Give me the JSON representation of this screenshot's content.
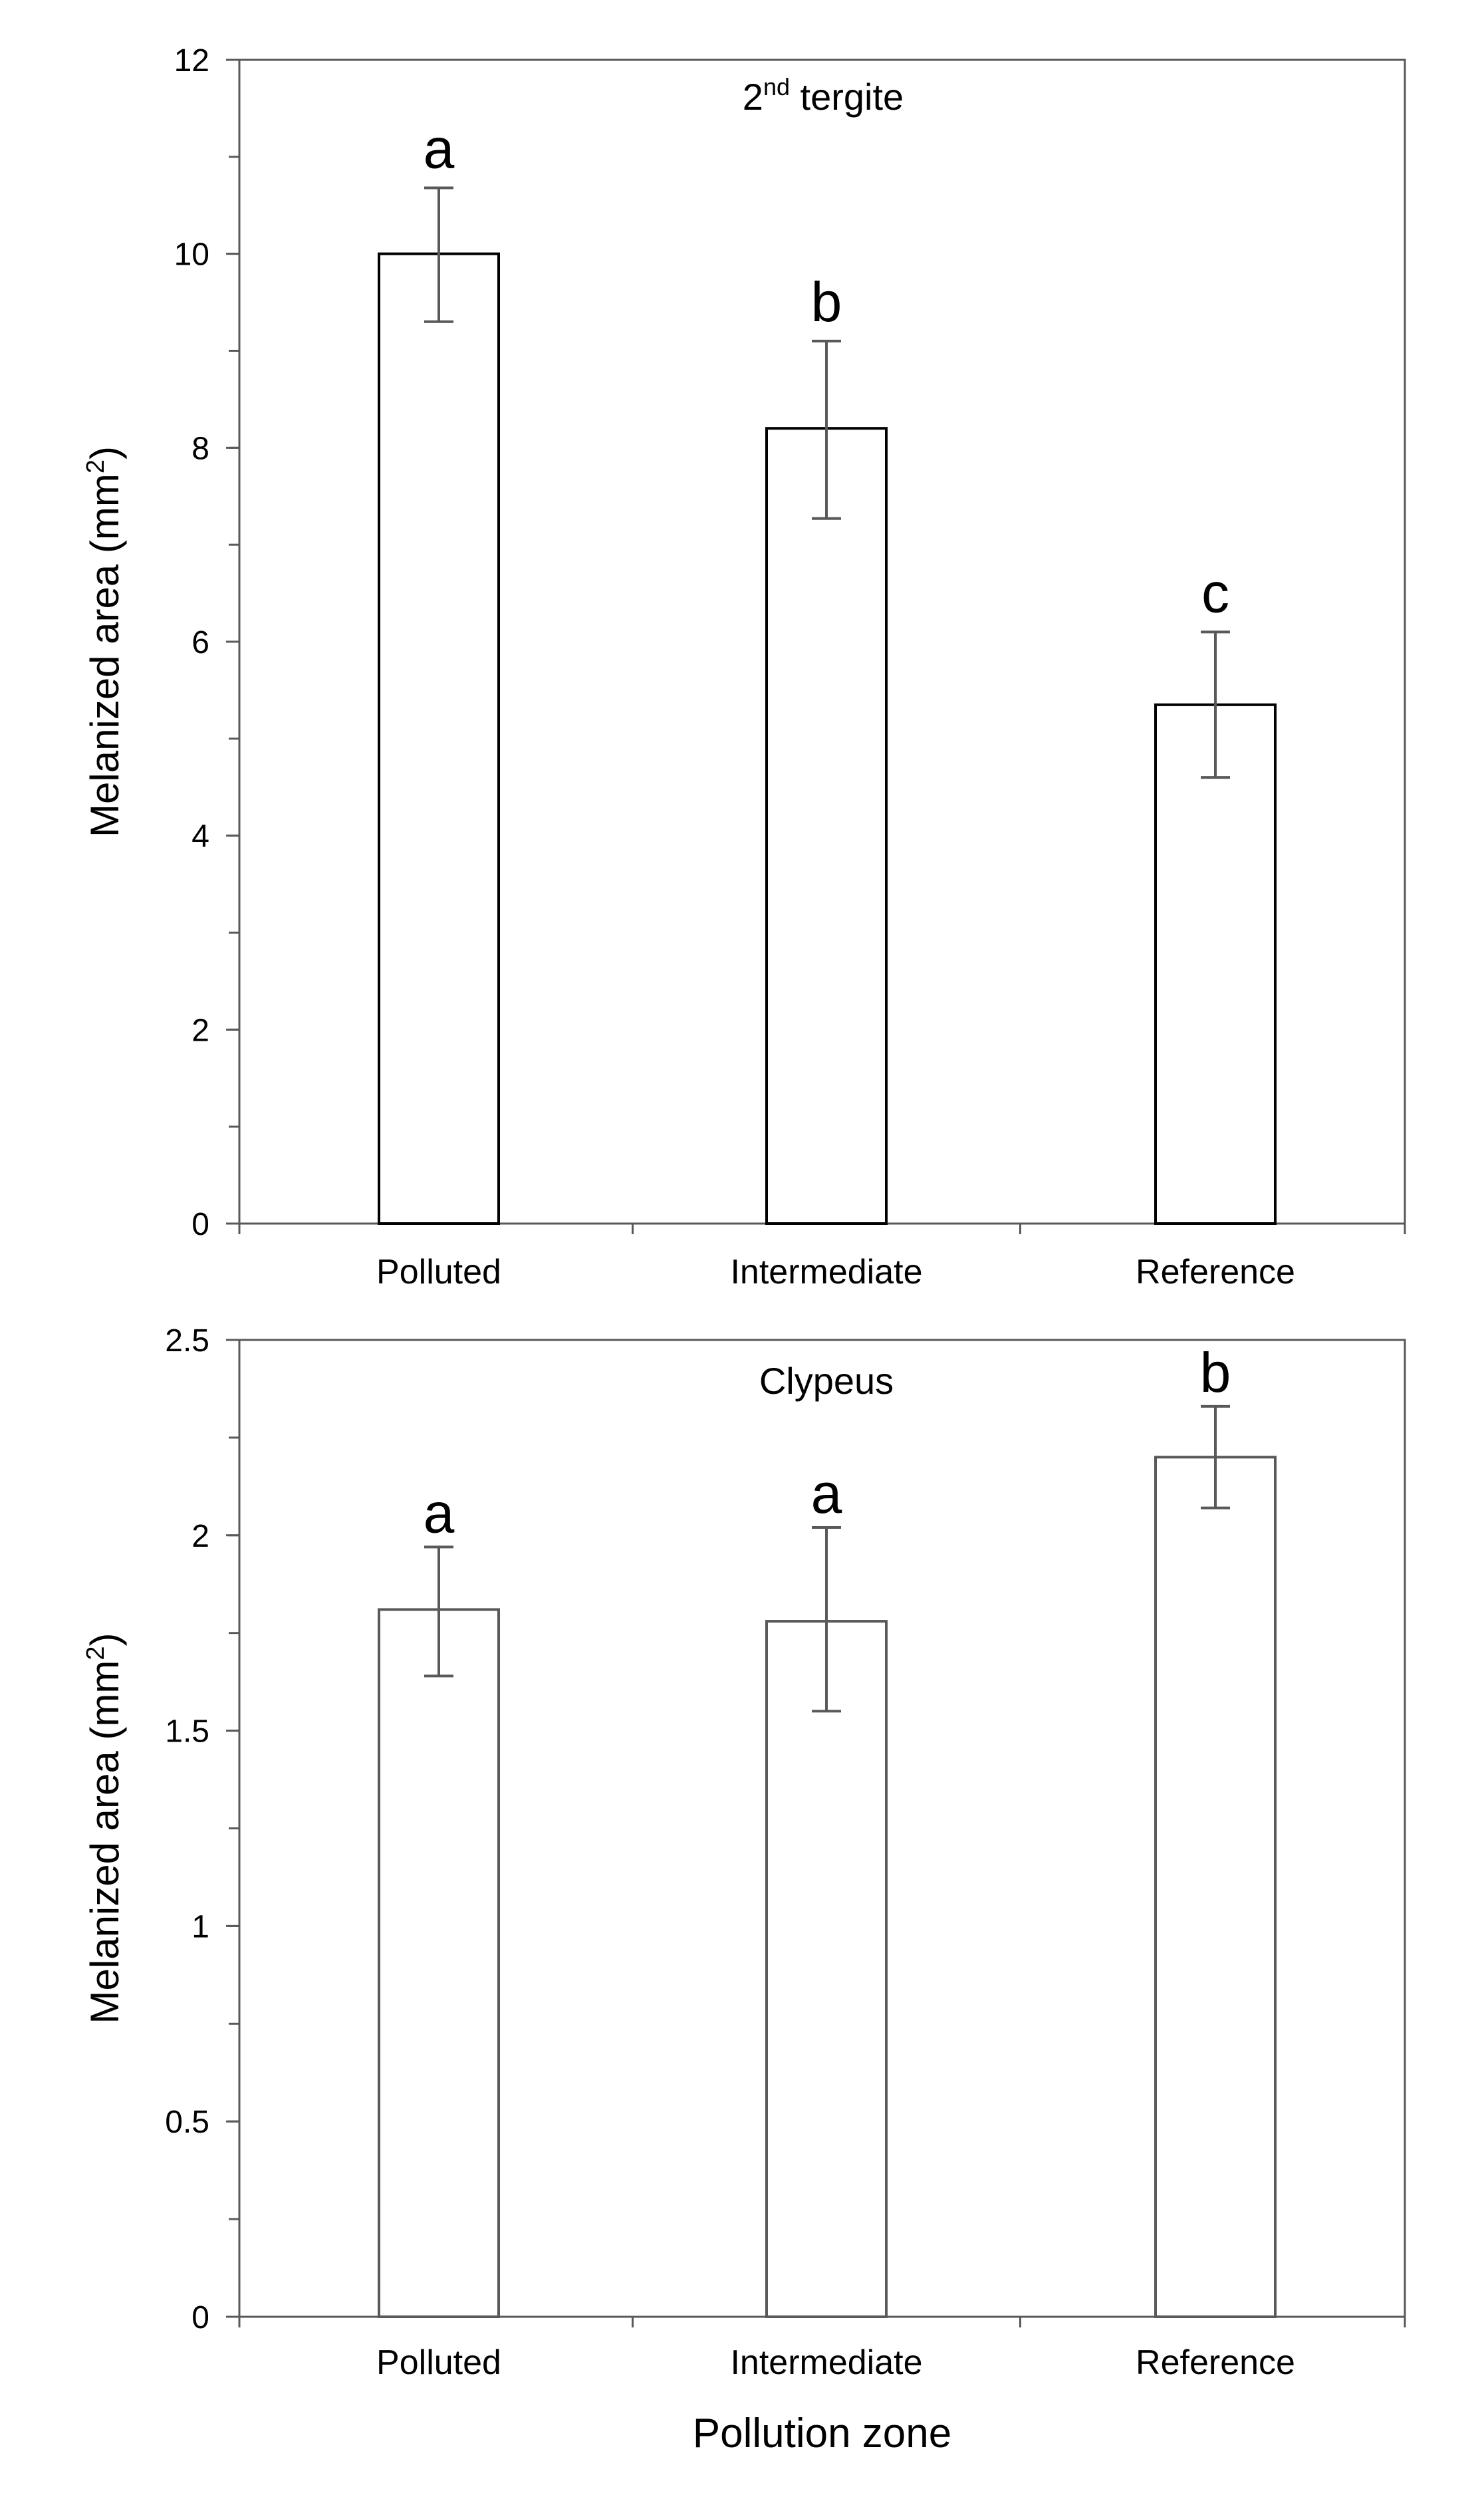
{
  "chart_data": [
    {
      "type": "bar",
      "title": "2nd tergite",
      "title_main": "2",
      "title_sup": "nd",
      "title_rest": " tergite",
      "xlabel": "",
      "ylabel": "Melanized area (mm²)",
      "ylabel_main": "Melanized area (mm",
      "ylabel_sup": "2",
      "ylabel_end": ")",
      "categories": [
        "Polluted",
        "Intermediate",
        "Reference"
      ],
      "values": [
        10.0,
        8.2,
        5.35
      ],
      "error_upper": [
        10.68,
        9.1,
        6.1
      ],
      "error_lower": [
        9.3,
        7.27,
        4.6
      ],
      "significance_letters": [
        "a",
        "b",
        "c"
      ],
      "ylim": [
        0,
        12
      ],
      "yticks": [
        0,
        2,
        4,
        6,
        8,
        10,
        12
      ],
      "ytick_labels": [
        "0",
        "2",
        "4",
        "6",
        "8",
        "10",
        "12"
      ],
      "minor_tick_step": 1,
      "bar_fill": "#ffffff",
      "bar_stroke": "#000000",
      "error_color": "#595959",
      "axis_color": "#595959"
    },
    {
      "type": "bar",
      "title": "Clypeus",
      "xlabel": "Pollution zone",
      "ylabel": "Melanized area (mm²)",
      "ylabel_main": "Melanized area (mm",
      "ylabel_sup": "2",
      "ylabel_end": ")",
      "categories": [
        "Polluted",
        "Intermediate",
        "Reference"
      ],
      "values": [
        1.81,
        1.78,
        2.2
      ],
      "error_upper": [
        1.97,
        2.02,
        2.33
      ],
      "error_lower": [
        1.64,
        1.55,
        2.07
      ],
      "significance_letters": [
        "a",
        "a",
        "b"
      ],
      "ylim": [
        0,
        2.5
      ],
      "yticks": [
        0,
        0.5,
        1,
        1.5,
        2,
        2.5
      ],
      "ytick_labels": [
        "0",
        "0.5",
        "1",
        "1.5",
        "2",
        "2.5"
      ],
      "minor_tick_step": 0.25,
      "bar_fill": "#ffffff",
      "bar_stroke": "#595959",
      "error_color": "#595959",
      "axis_color": "#595959"
    }
  ]
}
